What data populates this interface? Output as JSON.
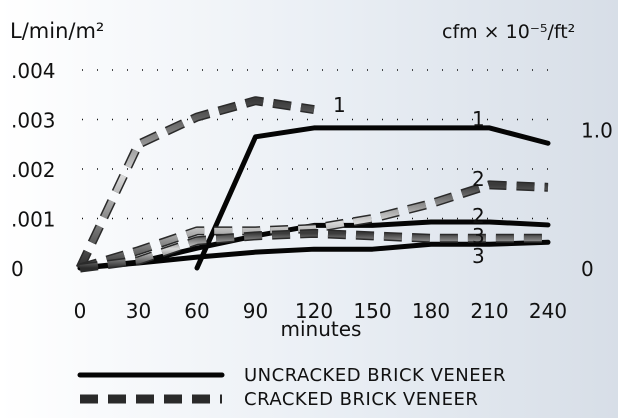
{
  "chart_data": {
    "type": "line",
    "x_values": [
      0,
      30,
      60,
      90,
      120,
      150,
      180,
      210,
      240
    ],
    "x_tick_labels": [
      "0",
      "30",
      "60",
      "90",
      "120",
      "150",
      "180",
      "210",
      "240"
    ],
    "xlabel": "minutes",
    "ylabel_left": "L/min/m²",
    "ylabel_right": "cfm × 10⁻⁵/ft²",
    "y_left_ticks": [
      ".004",
      ".003",
      ".002",
      ".001",
      "0"
    ],
    "y_right_ticks": [
      "1.0",
      "0"
    ],
    "ylim": [
      0,
      0.004
    ],
    "grid": true,
    "legend_position": "bottom",
    "series": [
      {
        "name": "UNCRACKED BRICK VENEER",
        "label": "1",
        "style": "solid",
        "points": [
          [
            60,
            0.0
          ],
          [
            90,
            0.00265
          ],
          [
            120,
            0.00283
          ],
          [
            150,
            0.00283
          ],
          [
            180,
            0.00283
          ],
          [
            210,
            0.00283
          ],
          [
            240,
            0.00252
          ]
        ]
      },
      {
        "name": "UNCRACKED BRICK VENEER",
        "label": "2",
        "style": "solid",
        "points": [
          [
            0,
            0.0
          ],
          [
            30,
            0.00012
          ],
          [
            60,
            0.0004
          ],
          [
            90,
            0.00065
          ],
          [
            120,
            0.00086
          ],
          [
            150,
            0.00086
          ],
          [
            180,
            0.00093
          ],
          [
            210,
            0.00093
          ],
          [
            240,
            0.00087
          ]
        ]
      },
      {
        "name": "UNCRACKED BRICK VENEER",
        "label": "3",
        "style": "solid",
        "points": [
          [
            0,
            0.0
          ],
          [
            30,
            0.0001
          ],
          [
            60,
            0.00022
          ],
          [
            90,
            0.00032
          ],
          [
            120,
            0.00038
          ],
          [
            150,
            0.00038
          ],
          [
            180,
            0.00048
          ],
          [
            210,
            0.00048
          ],
          [
            240,
            0.00052
          ]
        ]
      },
      {
        "name": "CRACKED BRICK VENEER",
        "label": "1",
        "style": "dashed",
        "points": [
          [
            0,
            0.0
          ],
          [
            30,
            0.0025
          ],
          [
            60,
            0.00305
          ],
          [
            90,
            0.00338
          ],
          [
            120,
            0.0032
          ]
        ]
      },
      {
        "name": "CRACKED BRICK VENEER",
        "label": "2",
        "style": "dashed",
        "points": [
          [
            0,
            0.0
          ],
          [
            30,
            0.00035
          ],
          [
            60,
            0.00075
          ],
          [
            90,
            0.00075
          ],
          [
            120,
            0.0008
          ],
          [
            150,
            0.001
          ],
          [
            180,
            0.0013
          ],
          [
            210,
            0.00168
          ],
          [
            240,
            0.00163
          ]
        ]
      },
      {
        "name": "CRACKED BRICK VENEER",
        "label": "3",
        "style": "dashed",
        "points": [
          [
            0,
            0.0
          ],
          [
            30,
            0.00015
          ],
          [
            60,
            0.00055
          ],
          [
            90,
            0.00065
          ],
          [
            120,
            0.0007
          ],
          [
            150,
            0.00065
          ],
          [
            180,
            0.0006
          ],
          [
            210,
            0.0006
          ],
          [
            240,
            0.0006
          ]
        ]
      }
    ],
    "legend": [
      {
        "label": "UNCRACKED BRICK VENEER",
        "style": "solid"
      },
      {
        "label": "CRACKED BRICK VENEER",
        "style": "dashed"
      }
    ]
  }
}
